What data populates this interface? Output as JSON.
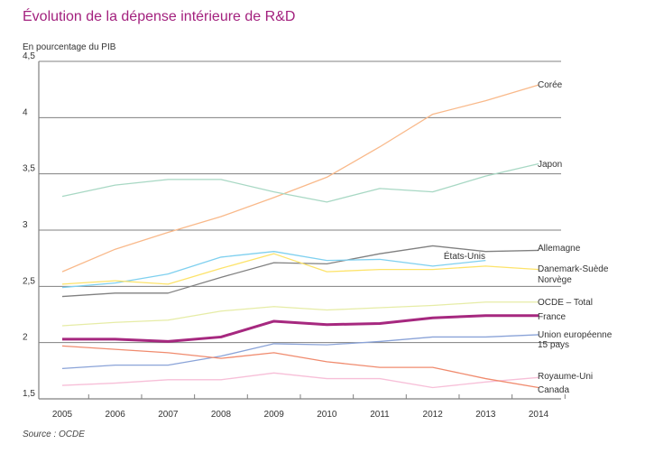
{
  "chart_data": {
    "type": "line",
    "title": "Évolution de la dépense intérieure de R&D",
    "ylabel": "En pourcentage du PIB",
    "source": "Source : OCDE",
    "x": [
      2005,
      2006,
      2007,
      2008,
      2009,
      2010,
      2011,
      2012,
      2013,
      2014
    ],
    "ylim": [
      1.5,
      4.5
    ],
    "yticks": [
      "1,5",
      "2",
      "2,5",
      "3",
      "3,5",
      "4",
      "4,5"
    ],
    "ytick_values": [
      1.5,
      2,
      2.5,
      3,
      3.5,
      4,
      4.5
    ],
    "grid": true,
    "legend": "inline-right",
    "series": [
      {
        "name": "Corée",
        "color": "#f9b98a",
        "width": 1.3,
        "values": [
          2.63,
          2.83,
          2.98,
          3.12,
          3.29,
          3.47,
          3.74,
          4.03,
          4.15,
          4.29
        ]
      },
      {
        "name": "Japon",
        "color": "#a8d8c4",
        "width": 1.3,
        "values": [
          3.3,
          3.4,
          3.45,
          3.45,
          3.34,
          3.25,
          3.37,
          3.34,
          3.48,
          3.59
        ]
      },
      {
        "name": "Allemagne",
        "color": "#808080",
        "width": 1.3,
        "values": [
          2.41,
          2.44,
          2.44,
          2.58,
          2.71,
          2.7,
          2.79,
          2.86,
          2.81,
          2.82
        ]
      },
      {
        "name": "États-Unis",
        "color": "#7fd0ef",
        "width": 1.3,
        "values": [
          2.49,
          2.53,
          2.61,
          2.76,
          2.81,
          2.73,
          2.74,
          2.68,
          2.73,
          null
        ]
      },
      {
        "name": "Danemark-Suède Norvège",
        "color": "#fde36a",
        "width": 1.3,
        "values": [
          2.52,
          2.55,
          2.52,
          2.66,
          2.79,
          2.63,
          2.65,
          2.65,
          2.68,
          2.65
        ]
      },
      {
        "name": "OCDE – Total",
        "color": "#e6eca6",
        "width": 1.3,
        "values": [
          2.15,
          2.18,
          2.2,
          2.28,
          2.32,
          2.29,
          2.31,
          2.33,
          2.36,
          2.36
        ]
      },
      {
        "name": "France",
        "color": "#a6287f",
        "width": 3,
        "values": [
          2.03,
          2.03,
          2.01,
          2.05,
          2.19,
          2.16,
          2.17,
          2.22,
          2.24,
          2.24
        ]
      },
      {
        "name": "Union européenne 15 pays",
        "color": "#8aa3d8",
        "width": 1.3,
        "values": [
          1.77,
          1.8,
          1.8,
          1.88,
          1.99,
          1.98,
          2.01,
          2.05,
          2.05,
          2.07
        ]
      },
      {
        "name": "Royaume-Uni",
        "color": "#f7bfd8",
        "width": 1.3,
        "values": [
          1.62,
          1.64,
          1.67,
          1.67,
          1.73,
          1.68,
          1.68,
          1.6,
          1.65,
          1.69
        ]
      },
      {
        "name": "Canada",
        "color": "#f08b6e",
        "width": 1.3,
        "values": [
          1.97,
          1.94,
          1.91,
          1.86,
          1.91,
          1.83,
          1.78,
          1.78,
          1.68,
          1.6
        ]
      }
    ]
  }
}
